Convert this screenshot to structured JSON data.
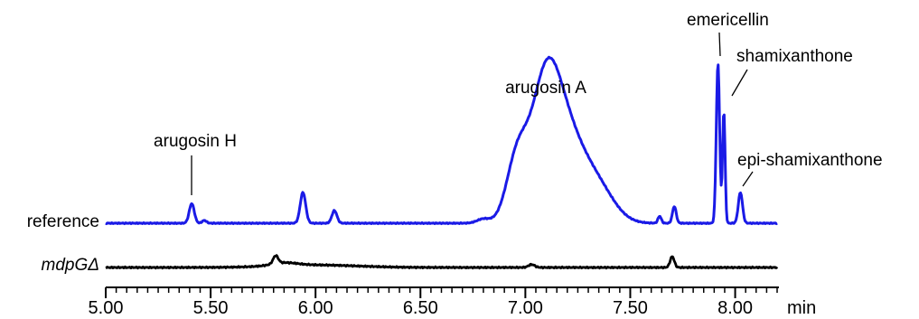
{
  "chart_data": {
    "type": "line",
    "title": "",
    "xlabel": "min",
    "ylabel": "",
    "xlim": [
      5.0,
      8.2
    ],
    "x_ticks": [
      "5.00",
      "5.50",
      "6.00",
      "6.50",
      "7.00",
      "7.50",
      "8.00"
    ],
    "grid": false,
    "legend": "none",
    "series": [
      {
        "name": "reference",
        "color": "#1a1ae6",
        "baseline": 0.0,
        "peaks": [
          {
            "x": 5.41,
            "h": 0.14,
            "w": 0.012
          },
          {
            "x": 5.47,
            "h": 0.02,
            "w": 0.01
          },
          {
            "x": 5.94,
            "h": 0.22,
            "w": 0.013
          },
          {
            "x": 6.09,
            "h": 0.09,
            "w": 0.012
          },
          {
            "x": 6.8,
            "h": 0.03,
            "w": 0.03
          },
          {
            "x": 6.96,
            "h": 0.42,
            "w": 0.05
          },
          {
            "x": 7.09,
            "h": 0.6,
            "w": 0.065
          },
          {
            "x": 7.17,
            "h": 0.72,
            "w": 0.1
          },
          {
            "x": 7.35,
            "h": 0.2,
            "w": 0.08
          },
          {
            "x": 7.64,
            "h": 0.05,
            "w": 0.008
          },
          {
            "x": 7.71,
            "h": 0.12,
            "w": 0.009
          },
          {
            "x": 7.918,
            "h": 1.14,
            "w": 0.008
          },
          {
            "x": 7.946,
            "h": 0.8,
            "w": 0.006
          },
          {
            "x": 8.025,
            "h": 0.22,
            "w": 0.01
          }
        ]
      },
      {
        "name": "mdpGΔ",
        "color": "#000000",
        "baseline": 0.0,
        "peaks": [
          {
            "x": 5.81,
            "h": 0.16,
            "w": 0.012
          },
          {
            "x": 5.85,
            "h": 0.06,
            "w": 0.06
          },
          {
            "x": 6.0,
            "h": 0.05,
            "w": 0.2
          },
          {
            "x": 7.03,
            "h": 0.06,
            "w": 0.015
          },
          {
            "x": 7.7,
            "h": 0.22,
            "w": 0.01
          }
        ]
      }
    ],
    "annotations": [
      {
        "text": "arugosin H",
        "x": 5.41
      },
      {
        "text": "arugosin A",
        "x": 7.17
      },
      {
        "text": "emericellin",
        "x": 7.918
      },
      {
        "text": "shamixanthone",
        "x": 7.946
      },
      {
        "text": "epi-shamixanthone",
        "x": 8.025
      }
    ]
  }
}
